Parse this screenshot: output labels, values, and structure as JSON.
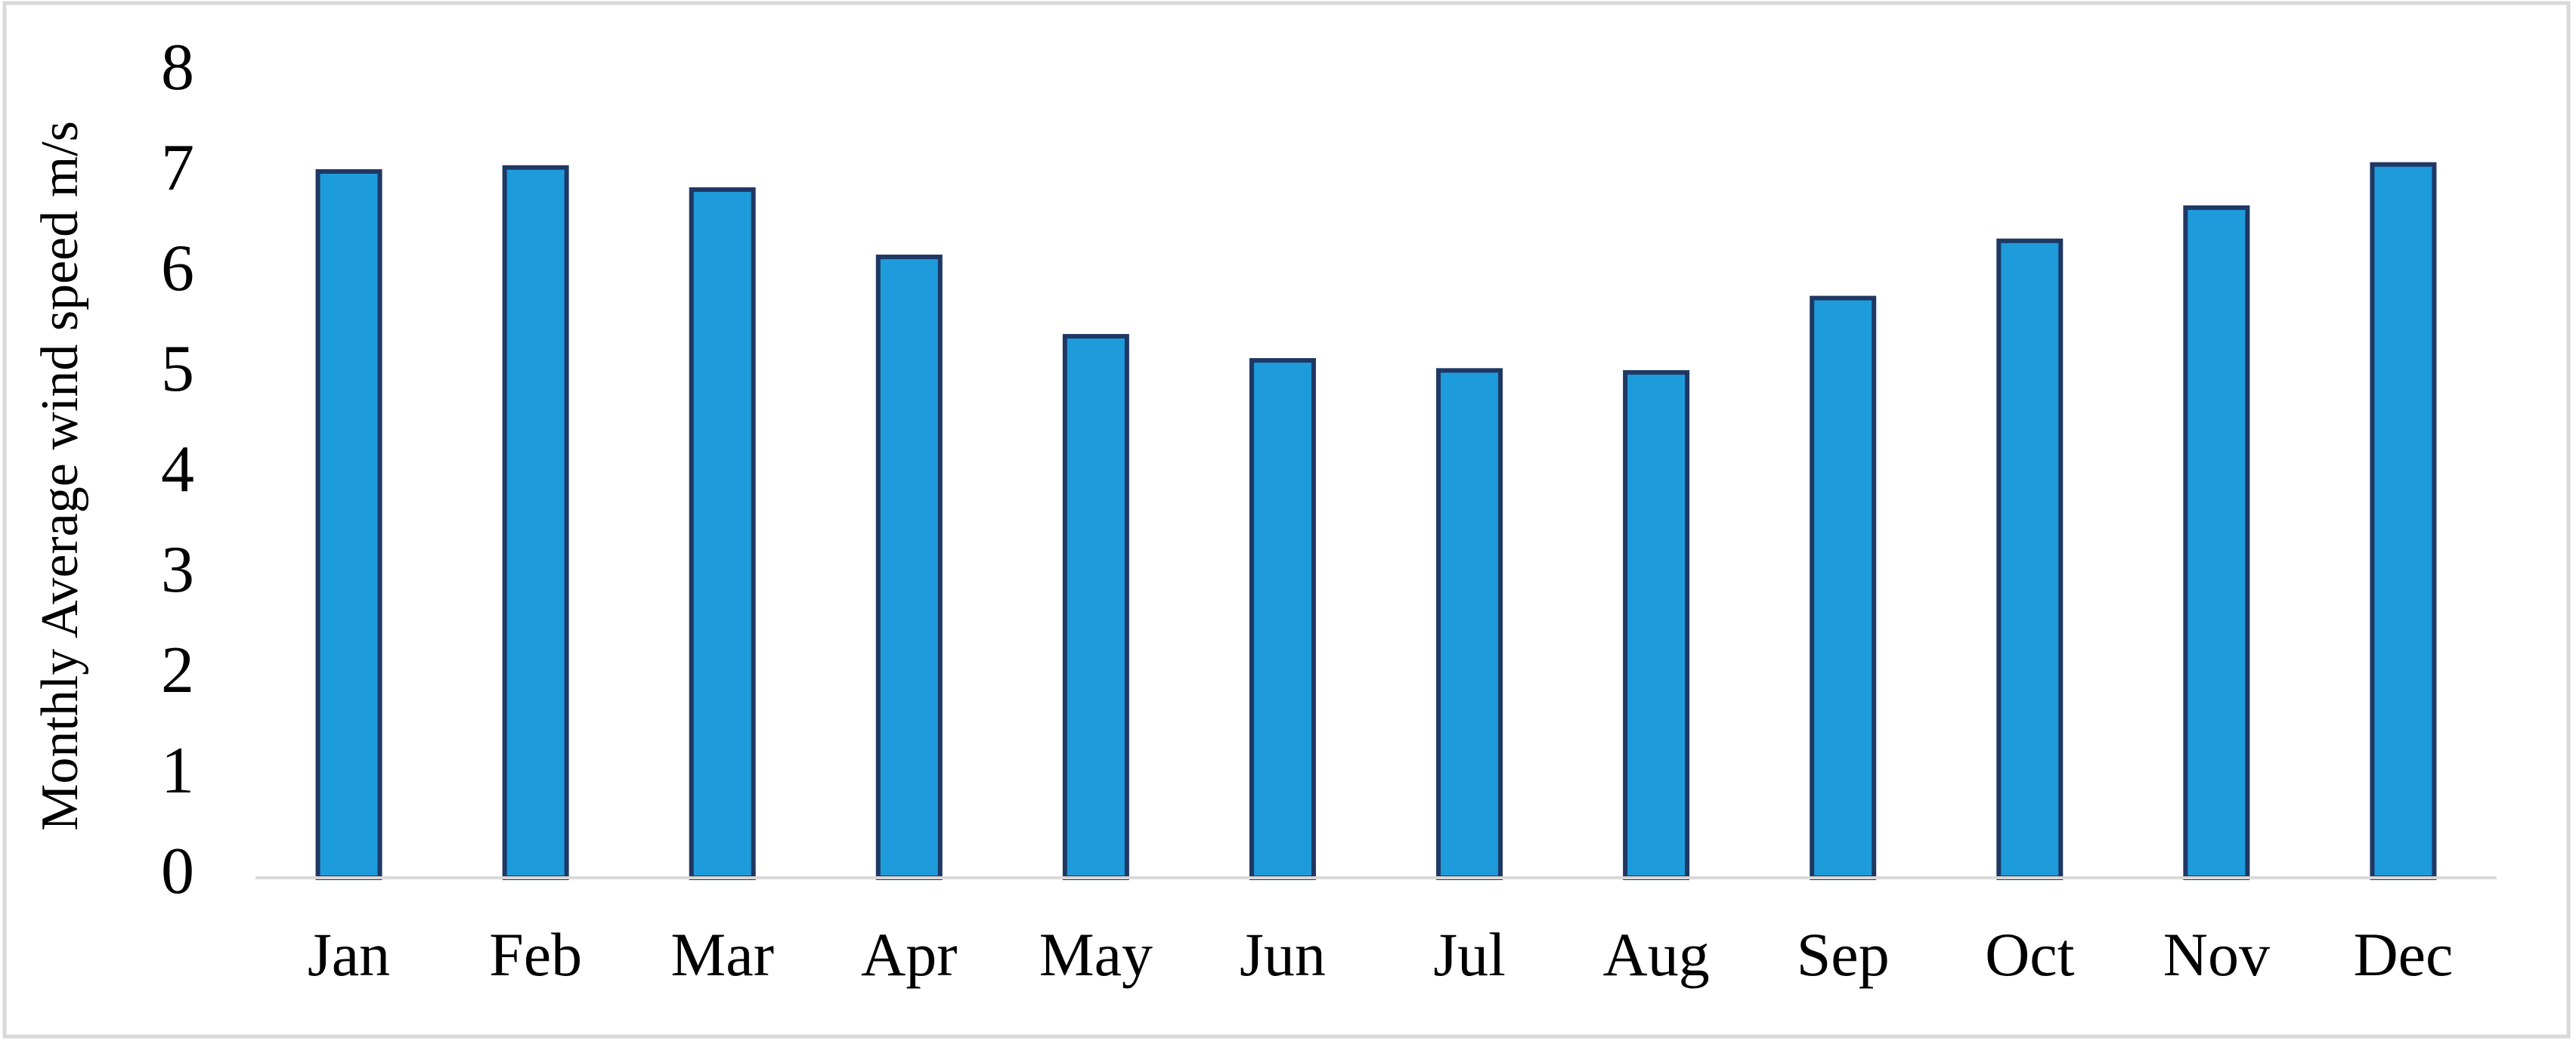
{
  "chart_data": {
    "type": "bar",
    "y_label": "Monthly Average wind speed m/s",
    "categories": [
      "Jan",
      "Feb",
      "Mar",
      "Apr",
      "May",
      "Jun",
      "Jul",
      "Aug",
      "Sep",
      "Oct",
      "Nov",
      "Dec"
    ],
    "values": [
      7.03,
      7.07,
      6.85,
      6.18,
      5.39,
      5.15,
      5.05,
      5.03,
      5.77,
      6.34,
      6.67,
      7.1
    ],
    "color": "#1e9bdb",
    "ylim": [
      0,
      8
    ],
    "yticks": [
      0,
      1,
      2,
      3,
      4,
      5,
      6,
      7,
      8
    ],
    "grid": false
  }
}
